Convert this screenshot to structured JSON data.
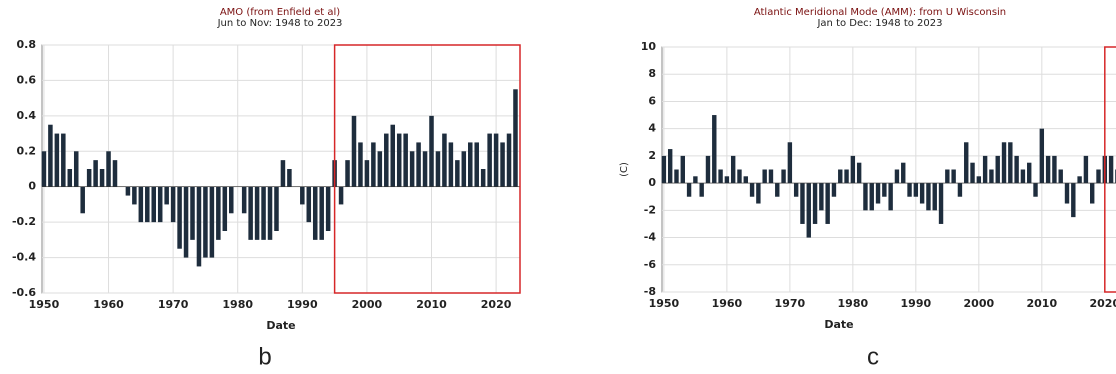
{
  "chart_data": [
    {
      "type": "bar",
      "title": "AMO (from Enfield et al)",
      "subtitle": "Jun to Nov: 1948 to 2023",
      "xlabel": "Date",
      "panel_label": "b",
      "x": [
        1950,
        1951,
        1952,
        1953,
        1954,
        1955,
        1956,
        1957,
        1958,
        1959,
        1960,
        1961,
        1962,
        1963,
        1964,
        1965,
        1966,
        1967,
        1968,
        1969,
        1970,
        1971,
        1972,
        1973,
        1974,
        1975,
        1976,
        1977,
        1978,
        1979,
        1980,
        1981,
        1982,
        1983,
        1984,
        1985,
        1986,
        1987,
        1988,
        1989,
        1990,
        1991,
        1992,
        1993,
        1994,
        1995,
        1996,
        1997,
        1998,
        1999,
        2000,
        2001,
        2002,
        2003,
        2004,
        2005,
        2006,
        2007,
        2008,
        2009,
        2010,
        2011,
        2012,
        2013,
        2014,
        2015,
        2016,
        2017,
        2018,
        2019,
        2020,
        2021,
        2022,
        2023
      ],
      "values": [
        0.2,
        0.35,
        0.3,
        0.3,
        0.1,
        0.2,
        -0.15,
        0.1,
        0.15,
        0.1,
        0.2,
        0.15,
        0.0,
        -0.05,
        -0.1,
        -0.2,
        -0.2,
        -0.2,
        -0.2,
        -0.1,
        -0.2,
        -0.35,
        -0.4,
        -0.3,
        -0.45,
        -0.4,
        -0.4,
        -0.3,
        -0.25,
        -0.15,
        0.0,
        -0.15,
        -0.3,
        -0.3,
        -0.3,
        -0.3,
        -0.25,
        0.15,
        0.1,
        0.0,
        -0.1,
        -0.2,
        -0.3,
        -0.3,
        -0.25,
        0.15,
        -0.1,
        0.15,
        0.4,
        0.25,
        0.15,
        0.25,
        0.2,
        0.3,
        0.35,
        0.3,
        0.3,
        0.2,
        0.25,
        0.2,
        0.4,
        0.2,
        0.3,
        0.25,
        0.15,
        0.2,
        0.25,
        0.25,
        0.1,
        0.3,
        0.3,
        0.25,
        0.3,
        0.55
      ],
      "color": "#1e2d3d",
      "xlim": [
        1949.7,
        2023.7
      ],
      "ylim": [
        -0.6,
        0.8
      ],
      "xticks": [
        1950,
        1960,
        1970,
        1980,
        1990,
        2000,
        2010,
        2020
      ],
      "yticks": [
        0.8,
        0.6,
        0.4,
        0.2,
        0,
        -0.2,
        -0.4,
        -0.6
      ],
      "grid": true,
      "highlight_x": [
        1995,
        2023.7
      ],
      "highlight_color": "#d62728"
    },
    {
      "type": "bar",
      "title": "Atlantic Meridional Mode (AMM): from U Wisconsin",
      "subtitle": "Jan to Dec: 1948 to 2023",
      "xlabel": "Date",
      "ylabel": "(C)",
      "panel_label": "c",
      "x": [
        1950,
        1951,
        1952,
        1953,
        1954,
        1955,
        1956,
        1957,
        1958,
        1959,
        1960,
        1961,
        1962,
        1963,
        1964,
        1965,
        1966,
        1967,
        1968,
        1969,
        1970,
        1971,
        1972,
        1973,
        1974,
        1975,
        1976,
        1977,
        1978,
        1979,
        1980,
        1981,
        1982,
        1983,
        1984,
        1985,
        1986,
        1987,
        1988,
        1989,
        1990,
        1991,
        1992,
        1993,
        1994,
        1995,
        1996,
        1997,
        1998,
        1999,
        2000,
        2001,
        2002,
        2003,
        2004,
        2005,
        2006,
        2007,
        2008,
        2009,
        2010,
        2011,
        2012,
        2013,
        2014,
        2015,
        2016,
        2017,
        2018,
        2019,
        2020,
        2021,
        2022,
        2023
      ],
      "values": [
        2,
        2.5,
        1,
        2,
        -1,
        0.5,
        -1,
        2,
        5,
        1,
        0.5,
        2,
        1,
        0.5,
        -1,
        -1.5,
        1,
        1,
        -1,
        1,
        3,
        -1,
        -3,
        -4,
        -3,
        -2,
        -3,
        -1,
        1,
        1,
        2,
        1.5,
        -2,
        -2,
        -1.5,
        -1,
        -2,
        1,
        1.5,
        -1,
        -1,
        -1.5,
        -2,
        -2,
        -3,
        1,
        1,
        -1,
        3,
        1.5,
        0.5,
        2,
        1,
        2,
        3,
        3,
        2,
        1,
        1.5,
        -1,
        4,
        2,
        2,
        1,
        -1.5,
        -2.5,
        0.5,
        2,
        -1.5,
        1,
        2,
        2,
        1,
        2.5
      ],
      "color": "#1e2d3d",
      "xlim": [
        1949.7,
        2024
      ],
      "ylim": [
        -8,
        10
      ],
      "xticks": [
        1950,
        1960,
        1970,
        1980,
        1990,
        2000,
        2010,
        2020
      ],
      "yticks": [
        10,
        8,
        6,
        4,
        2,
        0,
        -2,
        -4,
        -6,
        -8
      ],
      "grid": true,
      "highlight_x": [
        2020,
        2024
      ],
      "highlight_color": "#d62728"
    }
  ]
}
